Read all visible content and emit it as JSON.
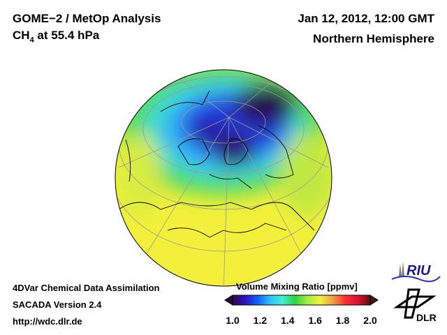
{
  "header": {
    "title": "GOME−2 / MetOp Analysis",
    "species": "CH",
    "species_sub": "4",
    "level": " at 55.4 hPa",
    "datetime": "Jan 12, 2012, 12:00 GMT",
    "region": "Northern Hemisphere"
  },
  "footer": {
    "line1": "4DVar Chemical Data Assimilation",
    "line2": "SACADA Version 2.4",
    "line3": "http://wdc.dlr.de"
  },
  "colorbar": {
    "title": "Volume Mixing Ratio [ppmv]",
    "min": 1.0,
    "max": 2.0,
    "ticks": [
      "1.0",
      "1.2",
      "1.4",
      "1.6",
      "1.8",
      "2.0"
    ],
    "colors": [
      "#2a0a4a",
      "#3010c0",
      "#1060ff",
      "#30c0ff",
      "#40f0d0",
      "#30d040",
      "#a0f040",
      "#f0f040",
      "#f0a040",
      "#ff3030",
      "#e01030",
      "#601010"
    ]
  },
  "logos": {
    "riu": "RIU",
    "dlr": "DLR"
  }
}
